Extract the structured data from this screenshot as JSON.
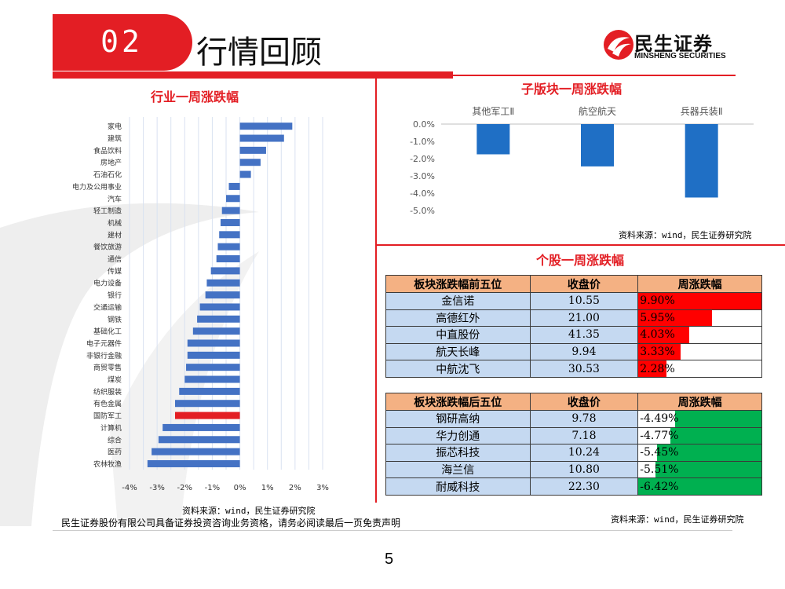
{
  "header": {
    "number": "02",
    "title": "行情回顾"
  },
  "logo": {
    "name_cn": "民生证券",
    "name_en": "MINSHENG SECURITIES"
  },
  "colors": {
    "accent": "#e31e24",
    "bar_blue": "#4472c4",
    "highlight_bar": "#e31e24",
    "sub_bar": "#1f6fc5",
    "up_fill": "#ff0000",
    "down_fill": "#00b050",
    "header_fill": "#f4b183",
    "cell_fill": "#c5d9f1"
  },
  "industry_chart": {
    "title": "行业一周涨跌幅",
    "source": "资料来源：wind，民生证券研究院",
    "chart_data": {
      "type": "bar",
      "orientation": "horizontal",
      "categories": [
        "家电",
        "建筑",
        "食品饮料",
        "房地产",
        "石油石化",
        "电力及公用事业",
        "汽车",
        "轻工制造",
        "机械",
        "建材",
        "餐饮旅游",
        "通信",
        "传媒",
        "电力设备",
        "银行",
        "交通运输",
        "钢铁",
        "基础化工",
        "电子元器件",
        "非银行金融",
        "商贸零售",
        "煤炭",
        "纺织服装",
        "有色金属",
        "国防军工",
        "计算机",
        "综合",
        "医药",
        "农林牧渔"
      ],
      "values": [
        1.9,
        1.6,
        0.95,
        0.75,
        0.4,
        -0.4,
        -0.5,
        -0.65,
        -0.7,
        -0.75,
        -0.8,
        -0.85,
        -1.05,
        -1.2,
        -1.25,
        -1.45,
        -1.55,
        -1.7,
        -1.9,
        -1.9,
        -1.95,
        -2.0,
        -2.2,
        -2.35,
        -2.35,
        -2.8,
        -2.95,
        -3.2,
        -3.35
      ],
      "highlight": "国防军工",
      "xticks": [
        "-4%",
        "-3%",
        "-2%",
        "-1%",
        "0%",
        "1%",
        "2%",
        "3%"
      ],
      "xlim": [
        -4,
        3
      ],
      "grid": true
    }
  },
  "sub_sector_chart": {
    "title": "子版块一周涨跌幅",
    "source": "资料来源：wind，民生证券研究院",
    "chart_data": {
      "type": "bar",
      "categories": [
        "其他军工Ⅱ",
        "航空航天",
        "兵器兵装Ⅱ"
      ],
      "values": [
        -1.75,
        -2.45,
        -4.25
      ],
      "yticks": [
        "0.0%",
        "-1.0%",
        "-2.0%",
        "-3.0%",
        "-4.0%",
        "-5.0%"
      ],
      "ylim": [
        -5,
        0
      ]
    }
  },
  "stocks": {
    "title": "个股一周涨跌幅",
    "source": "资料来源：wind，民生证券研究院",
    "top": {
      "headers": [
        "板块涨跌幅前五位",
        "收盘价",
        "周涨跌幅"
      ],
      "rows": [
        {
          "name": "金信诺",
          "close": "10.55",
          "change": "9.90%",
          "fill": 1.0
        },
        {
          "name": "高德红外",
          "close": "21.00",
          "change": "5.95%",
          "fill": 0.6
        },
        {
          "name": "中直股份",
          "close": "41.35",
          "change": "4.03%",
          "fill": 0.41
        },
        {
          "name": "航天长峰",
          "close": "9.94",
          "change": "3.33%",
          "fill": 0.34
        },
        {
          "name": "中航沈飞",
          "close": "30.53",
          "change": "2.28%",
          "fill": 0.23
        }
      ]
    },
    "bottom": {
      "headers": [
        "板块涨跌幅后五位",
        "收盘价",
        "周涨跌幅"
      ],
      "rows": [
        {
          "name": "钢研高纳",
          "close": "9.78",
          "change": "-4.49%",
          "fill": 0.7
        },
        {
          "name": "华力创通",
          "close": "7.18",
          "change": "-4.77%",
          "fill": 0.74
        },
        {
          "name": "振芯科技",
          "close": "10.24",
          "change": "-5.45%",
          "fill": 0.85
        },
        {
          "name": "海兰信",
          "close": "10.80",
          "change": "-5.51%",
          "fill": 0.86
        },
        {
          "name": "耐威科技",
          "close": "22.30",
          "change": "-6.42%",
          "fill": 1.0
        }
      ]
    }
  },
  "footer": {
    "disclaimer": "民生证券股份有限公司具备证券投资咨询业务资格，请务必阅读最后一页免责声明",
    "page": "5"
  }
}
